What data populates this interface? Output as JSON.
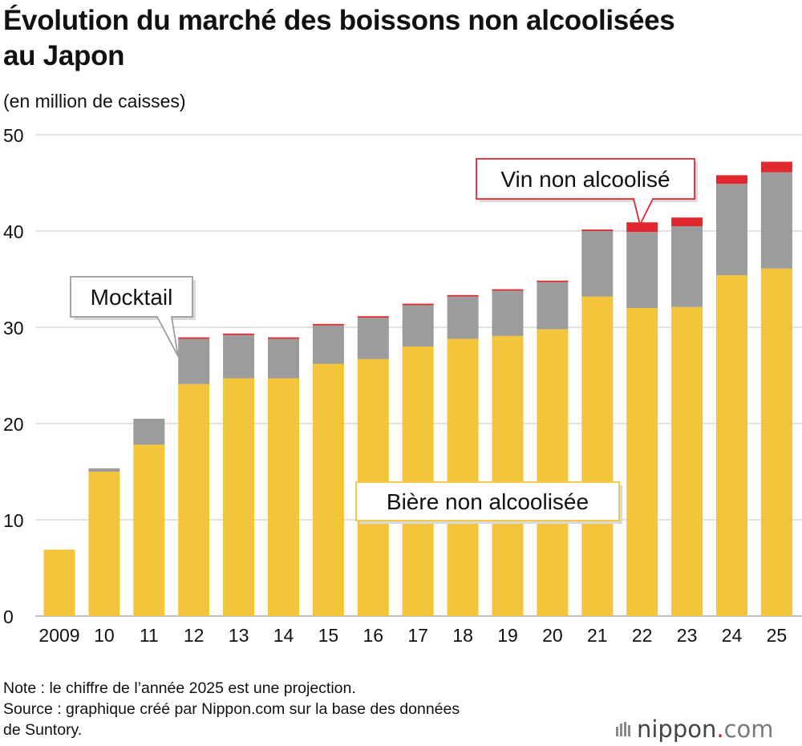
{
  "header": {
    "title_line1": "Évolution du marché des boissons non alcoolisées",
    "title_line2": "au Japon",
    "unit": "(en million de caisses)"
  },
  "chart_data": {
    "type": "bar",
    "stacked": true,
    "title": "Évolution du marché des boissons non alcoolisées au Japon",
    "ylabel": "(en million de caisses)",
    "ylim": [
      0,
      50
    ],
    "yticks": [
      0,
      10,
      20,
      30,
      40,
      50
    ],
    "grid": true,
    "categories": [
      "2009",
      "10",
      "11",
      "12",
      "13",
      "14",
      "15",
      "16",
      "17",
      "18",
      "19",
      "20",
      "21",
      "22",
      "23",
      "24",
      "25"
    ],
    "series": [
      {
        "name": "Bière non alcoolisée",
        "color": "#f2c53a",
        "values": [
          6.9,
          15.0,
          17.8,
          24.1,
          24.7,
          24.7,
          26.2,
          26.7,
          28.0,
          28.8,
          29.1,
          29.8,
          33.2,
          32.0,
          32.1,
          35.4,
          36.1
        ]
      },
      {
        "name": "Mocktail",
        "color": "#9c9c9c",
        "values": [
          0,
          0.35,
          2.7,
          4.7,
          4.5,
          4.1,
          4.0,
          4.3,
          4.3,
          4.4,
          4.7,
          4.9,
          6.8,
          7.9,
          8.4,
          9.5,
          10.0
        ]
      },
      {
        "name": "Vin non alcoolisé",
        "color": "#e0282e",
        "values": [
          0,
          0,
          0,
          0.15,
          0.15,
          0.15,
          0.15,
          0.15,
          0.15,
          0.15,
          0.15,
          0.15,
          0.15,
          1.0,
          0.9,
          0.9,
          1.1
        ]
      }
    ],
    "annotations": [
      "Mocktail",
      "Vin non alcoolisé",
      "Bière non alcoolisée"
    ]
  },
  "colors": {
    "beer": "#f2c53a",
    "mocktail": "#9c9c9c",
    "wine": "#e0282e",
    "grid": "#cfcfcf",
    "label_border_beer": "#f2c53a",
    "label_border_wine": "#e0282e",
    "label_border_mocktail": "#9c9c9c"
  },
  "footer": {
    "note": "Note : le chiffre de l’année 2025 est une projection.",
    "source_line1": "Source : graphique créé par Nippon.com sur la base des données",
    "source_line2": "de Suntory."
  },
  "logo": {
    "name": "nippon",
    "dot": ".",
    "suffix": "com"
  }
}
